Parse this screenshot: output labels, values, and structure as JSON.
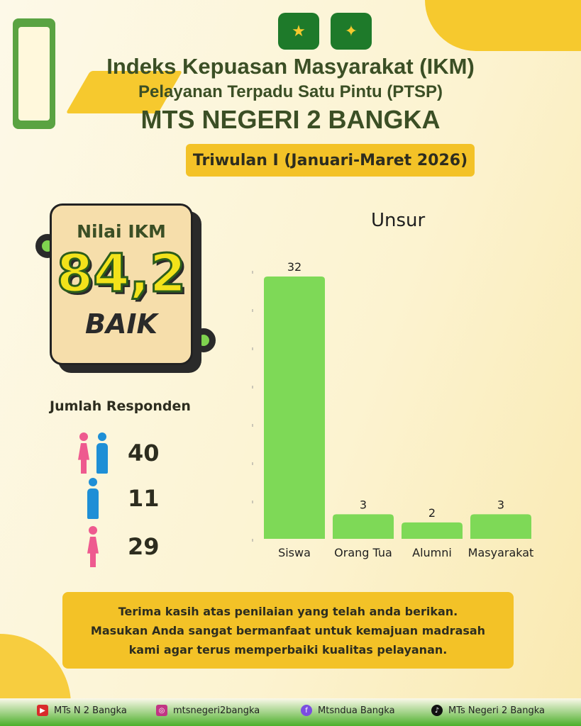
{
  "header": {
    "title": "Indeks Kepuasan Masyarakat (IKM)",
    "subtitle": "Pelayanan Terpadu Satu Pintu (PTSP)",
    "institution": "MTS NEGERI 2 BANGKA",
    "period": "Triwulan I (Januari-Maret 2026)"
  },
  "ikm": {
    "label": "Nilai IKM",
    "value": "84,2",
    "grade": "BAIK"
  },
  "respondents": {
    "label": "Jumlah Responden",
    "total": "40",
    "male": "11",
    "female": "29"
  },
  "chart_data": {
    "type": "bar",
    "title": "Unsur",
    "categories": [
      "Siswa",
      "Orang Tua",
      "Alumni",
      "Masyarakat"
    ],
    "values": [
      32,
      3,
      2,
      3
    ],
    "ylim": [
      0,
      32
    ],
    "color": "#7ed957",
    "grid": false
  },
  "message": [
    "Terima kasih atas penilaian yang telah anda berikan.",
    "Masukan Anda sangat bermanfaat untuk kemajuan madrasah",
    "kami agar terus memperbaiki kualitas pelayanan."
  ],
  "footer": {
    "youtube": "MTs N 2 Bangka",
    "instagram": "mtsnegeri2bangka",
    "facebook": "Mtsndua Bangka",
    "tiktok": "MTs Negeri 2 Bangka"
  }
}
